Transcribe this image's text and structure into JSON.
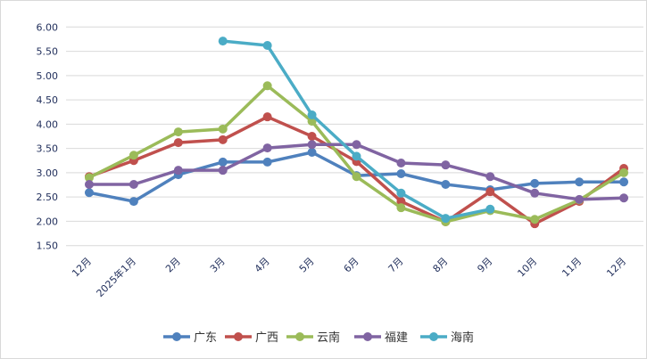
{
  "chart_data": {
    "type": "line",
    "title": "",
    "xlabel": "",
    "ylabel": "",
    "ylim": [
      1.5,
      6.0
    ],
    "yticks": [
      "1.50",
      "2.00",
      "2.50",
      "3.00",
      "3.50",
      "4.00",
      "4.50",
      "5.00",
      "5.50",
      "6.00"
    ],
    "grid": true,
    "legend_position": "bottom",
    "categories": [
      "12月",
      "2025年1月",
      "2月",
      "3月",
      "4月",
      "5月",
      "6月",
      "7月",
      "8月",
      "9月",
      "10月",
      "11月",
      "12月"
    ],
    "series": [
      {
        "name": "广东",
        "color": "#4f81bd",
        "values": [
          2.59,
          2.41,
          2.96,
          3.22,
          3.22,
          3.42,
          2.94,
          2.98,
          2.76,
          2.65,
          2.78,
          2.81,
          2.81
        ]
      },
      {
        "name": "广西",
        "color": "#c0504d",
        "values": [
          2.92,
          3.25,
          3.62,
          3.68,
          4.15,
          3.75,
          3.23,
          2.41,
          1.99,
          2.61,
          1.95,
          2.41,
          3.09
        ]
      },
      {
        "name": "云南",
        "color": "#9bbb59",
        "values": [
          2.9,
          3.36,
          3.84,
          3.9,
          4.79,
          4.06,
          2.92,
          2.28,
          1.99,
          2.22,
          2.04,
          2.44,
          3.0
        ]
      },
      {
        "name": "福建",
        "color": "#8064a2",
        "values": [
          2.76,
          2.76,
          3.05,
          3.05,
          3.51,
          3.58,
          3.58,
          3.2,
          3.16,
          2.92,
          2.58,
          2.45,
          2.48
        ]
      },
      {
        "name": "海南",
        "color": "#4bacc6",
        "values": [
          null,
          null,
          null,
          5.71,
          5.62,
          4.19,
          3.34,
          2.58,
          2.06,
          2.25,
          null,
          null,
          null
        ]
      }
    ]
  }
}
